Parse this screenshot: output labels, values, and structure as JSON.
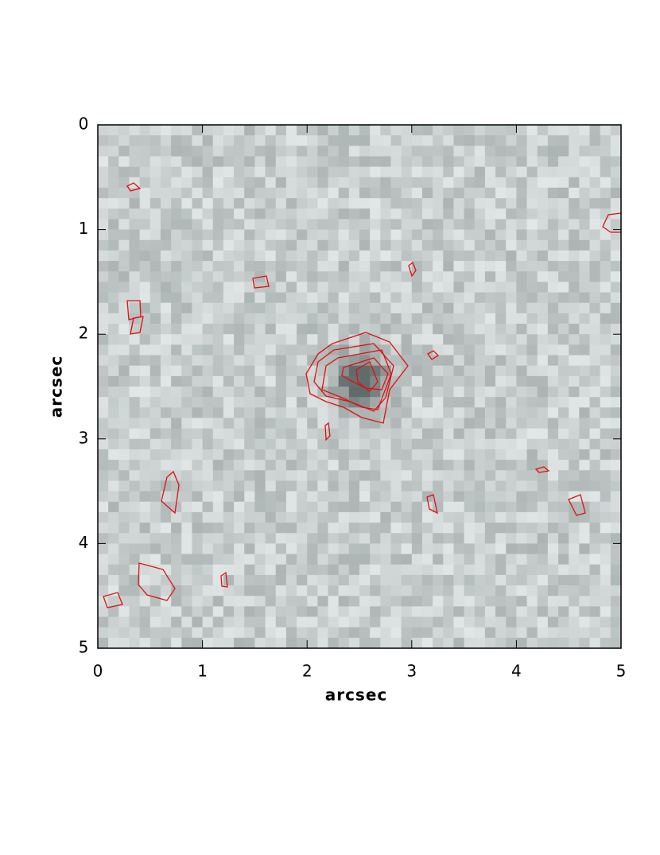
{
  "chart_data": {
    "type": "image",
    "x_label": "arcsec",
    "y_label": "arcsec",
    "xlim": [
      0,
      5
    ],
    "ylim": [
      5,
      0
    ],
    "xticks": [
      0,
      1,
      2,
      3,
      4,
      5
    ],
    "yticks": [
      0,
      1,
      2,
      3,
      4,
      5
    ],
    "colormap": "gray",
    "contour_color": "#e01010"
  }
}
